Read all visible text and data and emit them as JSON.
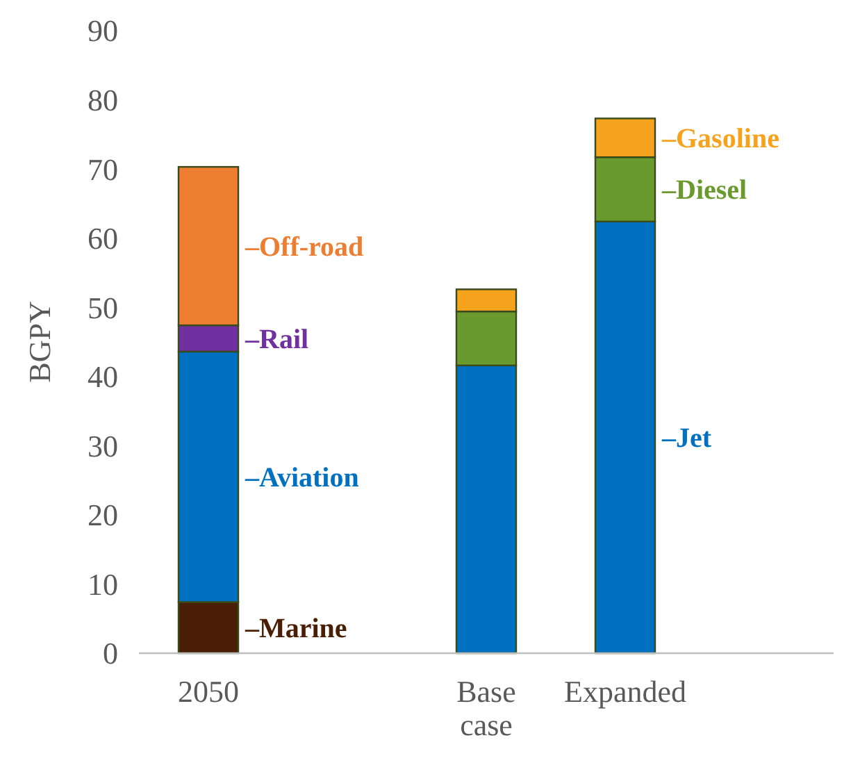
{
  "chart_data": {
    "type": "bar",
    "stacked": true,
    "ylabel": "BGPY",
    "categories": [
      "2050",
      null,
      "Base case",
      "Expanded",
      null
    ],
    "ylim": [
      0,
      90
    ],
    "yticks": [
      0,
      10,
      20,
      30,
      40,
      50,
      60,
      70,
      80,
      90
    ],
    "grid": false,
    "series": [
      {
        "name": "–Marine",
        "color": "#4a1e04",
        "values": [
          7.4,
          null,
          null,
          null,
          null
        ]
      },
      {
        "name": "–Aviation",
        "color": "#0070c0",
        "values": [
          36.2,
          null,
          null,
          null,
          null
        ]
      },
      {
        "name": "–Rail",
        "color": "#7030a0",
        "values": [
          3.8,
          null,
          null,
          null,
          null
        ]
      },
      {
        "name": "–Off-road",
        "color": "#ed7d31",
        "values": [
          22.9,
          null,
          null,
          null,
          null
        ]
      },
      {
        "name": "–Jet",
        "color": "#0070c0",
        "values": [
          null,
          null,
          41.6,
          62.4,
          null
        ]
      },
      {
        "name": "–Diesel",
        "color": "#6a9a2e",
        "values": [
          null,
          null,
          7.8,
          9.3,
          null
        ]
      },
      {
        "name": "–Gasoline",
        "color": "#f5a21d",
        "values": [
          null,
          null,
          3.2,
          5.6,
          null
        ]
      }
    ]
  }
}
